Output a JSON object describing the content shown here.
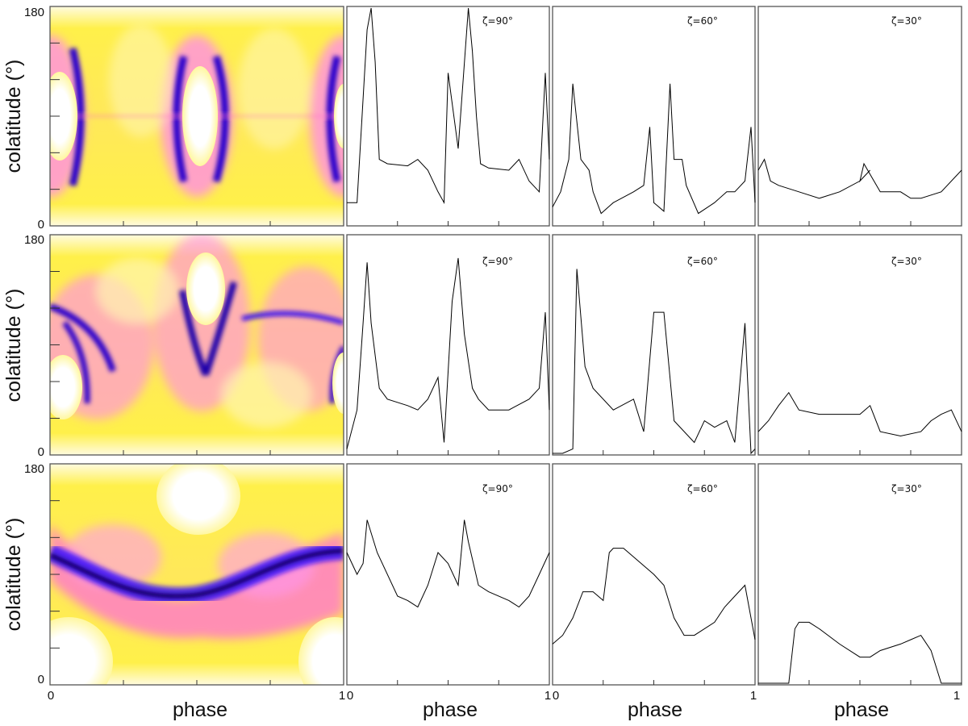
{
  "figure": {
    "ylabel": "colatitude (°)",
    "xlabel": "phase",
    "y_ticks": [
      "180",
      "0"
    ],
    "x_ticks": [
      "0",
      "1"
    ],
    "zeta_labels": [
      "ζ=90°",
      "ζ=60°",
      "ζ=30°"
    ]
  },
  "chart_data": [
    {
      "type": "heatmap",
      "row": 1,
      "xlabel": "phase",
      "ylabel": "colatitude (°)",
      "xlim": [
        0,
        1
      ],
      "ylim": [
        0,
        180
      ],
      "colormap": [
        "#000000",
        "#3a00ff",
        "#ff40ff",
        "#ffff00",
        "#ffffff"
      ]
    },
    {
      "type": "line",
      "row": 1,
      "label": "ζ=90°",
      "xlim": [
        0,
        1
      ],
      "x": [
        0,
        0.05,
        0.1,
        0.12,
        0.14,
        0.16,
        0.2,
        0.3,
        0.35,
        0.4,
        0.45,
        0.48,
        0.5,
        0.55,
        0.6,
        0.62,
        0.64,
        0.66,
        0.7,
        0.8,
        0.85,
        0.9,
        0.95,
        0.98,
        1.0
      ],
      "y": [
        0.1,
        0.1,
        0.9,
        1.0,
        0.75,
        0.3,
        0.28,
        0.27,
        0.3,
        0.25,
        0.15,
        0.1,
        0.7,
        0.35,
        1.0,
        0.8,
        0.5,
        0.28,
        0.26,
        0.25,
        0.3,
        0.2,
        0.15,
        0.7,
        0.3
      ]
    },
    {
      "type": "line",
      "row": 1,
      "label": "ζ=60°",
      "xlim": [
        0,
        1
      ],
      "x": [
        0,
        0.04,
        0.08,
        0.1,
        0.14,
        0.18,
        0.2,
        0.24,
        0.3,
        0.4,
        0.45,
        0.48,
        0.5,
        0.55,
        0.58,
        0.6,
        0.64,
        0.66,
        0.72,
        0.8,
        0.86,
        0.9,
        0.95,
        0.98,
        1.0
      ],
      "y": [
        0.08,
        0.15,
        0.3,
        0.65,
        0.3,
        0.25,
        0.15,
        0.05,
        0.1,
        0.15,
        0.18,
        0.45,
        0.1,
        0.06,
        0.65,
        0.3,
        0.3,
        0.18,
        0.05,
        0.1,
        0.15,
        0.15,
        0.2,
        0.45,
        0.1
      ]
    },
    {
      "type": "line",
      "row": 1,
      "label": "ζ=30°",
      "xlim": [
        0,
        1
      ],
      "x": [
        0,
        0.03,
        0.06,
        0.1,
        0.2,
        0.3,
        0.4,
        0.5,
        0.55,
        0.5,
        0.52,
        0.6,
        0.7,
        0.75,
        0.8,
        0.9,
        1.0
      ],
      "y": [
        0.25,
        0.3,
        0.2,
        0.18,
        0.15,
        0.12,
        0.15,
        0.2,
        0.25,
        0.2,
        0.28,
        0.15,
        0.15,
        0.12,
        0.12,
        0.15,
        0.25
      ]
    },
    {
      "type": "heatmap",
      "row": 2,
      "xlabel": "phase",
      "ylabel": "colatitude (°)",
      "xlim": [
        0,
        1
      ],
      "ylim": [
        0,
        180
      ]
    },
    {
      "type": "line",
      "row": 2,
      "label": "ζ=90°",
      "xlim": [
        0,
        1
      ],
      "x": [
        0,
        0.05,
        0.08,
        0.1,
        0.12,
        0.16,
        0.2,
        0.3,
        0.35,
        0.4,
        0.45,
        0.48,
        0.52,
        0.55,
        0.58,
        0.62,
        0.65,
        0.7,
        0.8,
        0.9,
        0.95,
        0.98,
        1.0
      ],
      "y": [
        0.02,
        0.2,
        0.6,
        0.88,
        0.6,
        0.3,
        0.25,
        0.22,
        0.2,
        0.25,
        0.35,
        0.05,
        0.7,
        0.9,
        0.55,
        0.3,
        0.25,
        0.2,
        0.2,
        0.25,
        0.3,
        0.65,
        0.2
      ]
    },
    {
      "type": "line",
      "row": 2,
      "label": "ζ=60°",
      "xlim": [
        0,
        1
      ],
      "x": [
        0,
        0.05,
        0.1,
        0.12,
        0.16,
        0.2,
        0.3,
        0.4,
        0.45,
        0.5,
        0.55,
        0.6,
        0.7,
        0.75,
        0.8,
        0.86,
        0.9,
        0.95,
        0.98,
        1.0
      ],
      "y": [
        0,
        0,
        0.02,
        0.85,
        0.4,
        0.3,
        0.2,
        0.25,
        0.1,
        0.65,
        0.65,
        0.15,
        0.05,
        0.15,
        0.12,
        0.15,
        0.05,
        0.6,
        0,
        0.02
      ]
    },
    {
      "type": "line",
      "row": 2,
      "label": "ζ=30°",
      "xlim": [
        0,
        1
      ],
      "x": [
        0,
        0.05,
        0.1,
        0.15,
        0.2,
        0.3,
        0.4,
        0.5,
        0.55,
        0.6,
        0.7,
        0.8,
        0.85,
        0.9,
        0.95,
        1.0
      ],
      "y": [
        0.1,
        0.15,
        0.22,
        0.28,
        0.2,
        0.18,
        0.18,
        0.18,
        0.22,
        0.1,
        0.08,
        0.1,
        0.15,
        0.18,
        0.2,
        0.1
      ]
    },
    {
      "type": "heatmap",
      "row": 3,
      "xlabel": "phase",
      "ylabel": "colatitude (°)",
      "xlim": [
        0,
        1
      ],
      "ylim": [
        0,
        180
      ]
    },
    {
      "type": "line",
      "row": 3,
      "label": "ζ=90°",
      "xlim": [
        0,
        1
      ],
      "x": [
        0,
        0.05,
        0.08,
        0.1,
        0.15,
        0.25,
        0.3,
        0.35,
        0.4,
        0.45,
        0.5,
        0.55,
        0.58,
        0.6,
        0.65,
        0.7,
        0.8,
        0.85,
        0.9,
        0.95,
        1.0
      ],
      "y": [
        0.6,
        0.5,
        0.55,
        0.75,
        0.6,
        0.4,
        0.38,
        0.35,
        0.45,
        0.6,
        0.55,
        0.45,
        0.75,
        0.65,
        0.45,
        0.42,
        0.38,
        0.35,
        0.4,
        0.5,
        0.6
      ]
    },
    {
      "type": "line",
      "row": 3,
      "label": "ζ=60°",
      "xlim": [
        0,
        1
      ],
      "x": [
        0,
        0.05,
        0.1,
        0.15,
        0.2,
        0.25,
        0.28,
        0.3,
        0.35,
        0.4,
        0.5,
        0.55,
        0.6,
        0.65,
        0.7,
        0.8,
        0.85,
        0.9,
        0.95,
        1.0
      ],
      "y": [
        0.18,
        0.22,
        0.3,
        0.42,
        0.42,
        0.38,
        0.6,
        0.62,
        0.62,
        0.58,
        0.5,
        0.45,
        0.3,
        0.22,
        0.22,
        0.28,
        0.35,
        0.4,
        0.45,
        0.2
      ]
    },
    {
      "type": "line",
      "row": 3,
      "label": "ζ=30°",
      "xlim": [
        0,
        1
      ],
      "x": [
        0,
        0.1,
        0.15,
        0.18,
        0.2,
        0.25,
        0.3,
        0.4,
        0.5,
        0.55,
        0.6,
        0.7,
        0.75,
        0.8,
        0.85,
        0.9,
        0.95,
        1.0
      ],
      "y": [
        0,
        0,
        0,
        0.25,
        0.28,
        0.28,
        0.25,
        0.18,
        0.12,
        0.12,
        0.15,
        0.18,
        0.2,
        0.22,
        0.15,
        0,
        0,
        0
      ]
    }
  ]
}
